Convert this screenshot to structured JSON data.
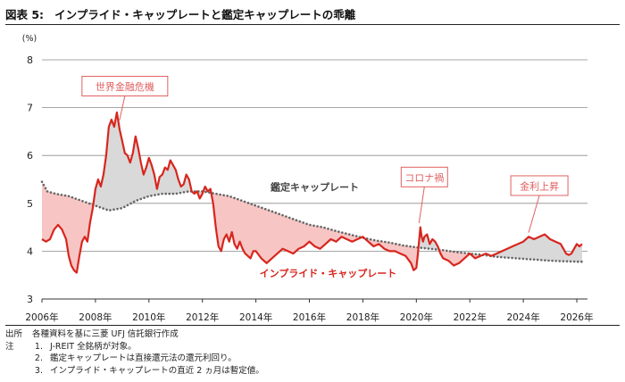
{
  "header": {
    "figure_number": "図表 5:",
    "title": "インプライド・キャップレートと鑑定キャップレートの乖離"
  },
  "colors": {
    "implied": "#d7261e",
    "appraisal": "#666666",
    "fill_below": "#f7c6c4",
    "fill_above": "#d9d9d9",
    "callout": "#e06060"
  },
  "chart_data": {
    "type": "line",
    "title": "",
    "xlabel": "",
    "ylabel": "(%)",
    "xlim": [
      2006.0,
      2026.4
    ],
    "ylim": [
      3,
      8
    ],
    "y_ticks": [
      "3",
      "4",
      "5",
      "6",
      "7",
      "8"
    ],
    "x_ticks": [
      "2006年",
      "2008年",
      "2010年",
      "2012年",
      "2014年",
      "2016年",
      "2018年",
      "2020年",
      "2022年",
      "2024年",
      "2026年"
    ],
    "grid": true,
    "series": [
      {
        "name": "インプライド・キャップレート",
        "style": "solid",
        "x": [
          2006.0,
          2006.15,
          2006.3,
          2006.45,
          2006.6,
          2006.75,
          2006.9,
          2007.0,
          2007.1,
          2007.2,
          2007.3,
          2007.4,
          2007.5,
          2007.6,
          2007.7,
          2007.8,
          2007.9,
          2008.0,
          2008.1,
          2008.2,
          2008.3,
          2008.4,
          2008.5,
          2008.6,
          2008.7,
          2008.8,
          2008.9,
          2009.0,
          2009.1,
          2009.2,
          2009.3,
          2009.4,
          2009.5,
          2009.6,
          2009.7,
          2009.8,
          2009.9,
          2010.0,
          2010.1,
          2010.2,
          2010.3,
          2010.4,
          2010.5,
          2010.6,
          2010.7,
          2010.8,
          2010.9,
          2011.0,
          2011.1,
          2011.2,
          2011.3,
          2011.4,
          2011.5,
          2011.6,
          2011.7,
          2011.8,
          2011.9,
          2012.0,
          2012.1,
          2012.2,
          2012.3,
          2012.4,
          2012.5,
          2012.6,
          2012.7,
          2012.8,
          2012.9,
          2013.0,
          2013.1,
          2013.2,
          2013.3,
          2013.4,
          2013.5,
          2013.6,
          2013.7,
          2013.8,
          2013.9,
          2014.0,
          2014.2,
          2014.4,
          2014.6,
          2014.8,
          2015.0,
          2015.2,
          2015.4,
          2015.6,
          2015.8,
          2016.0,
          2016.2,
          2016.4,
          2016.6,
          2016.8,
          2017.0,
          2017.2,
          2017.4,
          2017.6,
          2017.8,
          2018.0,
          2018.2,
          2018.4,
          2018.6,
          2018.8,
          2019.0,
          2019.2,
          2019.4,
          2019.6,
          2019.8,
          2019.9,
          2020.0,
          2020.05,
          2020.1,
          2020.15,
          2020.2,
          2020.25,
          2020.3,
          2020.4,
          2020.5,
          2020.6,
          2020.7,
          2020.8,
          2020.9,
          2021.0,
          2021.2,
          2021.4,
          2021.6,
          2021.8,
          2022.0,
          2022.2,
          2022.4,
          2022.6,
          2022.8,
          2023.0,
          2023.2,
          2023.4,
          2023.6,
          2023.8,
          2024.0,
          2024.2,
          2024.4,
          2024.6,
          2024.8,
          2025.0,
          2025.2,
          2025.4,
          2025.5,
          2025.6,
          2025.7,
          2025.8,
          2025.9,
          2026.0,
          2026.1,
          2026.2
        ],
        "values": [
          4.25,
          4.2,
          4.25,
          4.45,
          4.55,
          4.45,
          4.25,
          3.9,
          3.7,
          3.6,
          3.55,
          3.9,
          4.2,
          4.3,
          4.2,
          4.6,
          4.9,
          5.3,
          5.5,
          5.35,
          5.6,
          6.0,
          6.6,
          6.75,
          6.6,
          6.9,
          6.55,
          6.3,
          6.05,
          6.0,
          5.85,
          6.05,
          6.4,
          6.15,
          5.85,
          5.6,
          5.75,
          5.95,
          5.8,
          5.6,
          5.3,
          5.55,
          5.6,
          5.75,
          5.7,
          5.9,
          5.8,
          5.7,
          5.5,
          5.35,
          5.4,
          5.6,
          5.5,
          5.25,
          5.2,
          5.25,
          5.1,
          5.2,
          5.35,
          5.25,
          5.3,
          5.0,
          4.5,
          4.1,
          4.0,
          4.25,
          4.35,
          4.2,
          4.4,
          4.15,
          4.05,
          4.2,
          4.05,
          3.95,
          3.9,
          3.85,
          4.0,
          4.0,
          3.85,
          3.75,
          3.85,
          3.95,
          4.05,
          4.0,
          3.95,
          4.05,
          4.1,
          4.2,
          4.1,
          4.05,
          4.15,
          4.25,
          4.2,
          4.3,
          4.25,
          4.2,
          4.25,
          4.3,
          4.2,
          4.1,
          4.15,
          4.05,
          4.0,
          4.0,
          3.95,
          3.9,
          3.75,
          3.6,
          3.65,
          3.9,
          4.2,
          4.5,
          4.3,
          4.2,
          4.3,
          4.35,
          4.15,
          4.25,
          4.2,
          4.1,
          3.95,
          3.85,
          3.8,
          3.7,
          3.75,
          3.85,
          3.95,
          3.85,
          3.9,
          3.95,
          3.9,
          3.95,
          4.0,
          4.05,
          4.1,
          4.15,
          4.2,
          4.3,
          4.25,
          4.3,
          4.35,
          4.25,
          4.2,
          4.15,
          4.05,
          3.95,
          3.92,
          3.95,
          4.05,
          4.15,
          4.1,
          4.15
        ]
      },
      {
        "name": "鑑定キャップレート",
        "style": "dotted",
        "x": [
          2006.0,
          2006.2,
          2006.5,
          2007.0,
          2007.5,
          2008.0,
          2008.5,
          2009.0,
          2009.5,
          2010.0,
          2010.5,
          2011.0,
          2011.5,
          2012.0,
          2012.5,
          2013.0,
          2013.5,
          2014.0,
          2014.5,
          2015.0,
          2015.5,
          2016.0,
          2016.5,
          2017.0,
          2017.5,
          2018.0,
          2018.5,
          2019.0,
          2019.5,
          2020.0,
          2020.5,
          2021.0,
          2021.5,
          2022.0,
          2022.5,
          2023.0,
          2023.5,
          2024.0,
          2024.5,
          2025.0,
          2025.5,
          2026.0,
          2026.2
        ],
        "values": [
          5.45,
          5.25,
          5.2,
          5.15,
          5.05,
          4.95,
          4.85,
          4.9,
          5.05,
          5.15,
          5.2,
          5.2,
          5.25,
          5.25,
          5.2,
          5.15,
          5.05,
          4.95,
          4.85,
          4.75,
          4.65,
          4.55,
          4.5,
          4.42,
          4.35,
          4.28,
          4.22,
          4.18,
          4.12,
          4.08,
          4.05,
          4.02,
          3.98,
          3.95,
          3.92,
          3.88,
          3.86,
          3.84,
          3.82,
          3.8,
          3.79,
          3.78,
          3.78
        ]
      }
    ],
    "annotations": [
      {
        "label": "世界金融危機",
        "x": 2008.9,
        "y": 6.7
      },
      {
        "label": "コロナ禍",
        "x": 2020.1,
        "y": 4.55
      },
      {
        "label": "金利上昇",
        "x": 2024.2,
        "y": 4.35
      }
    ],
    "series_labels": [
      {
        "text": "鑑定キャップレート",
        "series": 1
      },
      {
        "text": "インプライド・キャップレート",
        "series": 0
      }
    ]
  },
  "notes": {
    "source_key": "出所",
    "source_text": "各種資料を基に三菱 UFJ 信託銀行作成",
    "note_key": "注",
    "items": [
      {
        "num": "1.",
        "text": "J-REIT 全銘柄が対象。"
      },
      {
        "num": "2.",
        "text": "鑑定キャップレートは直接還元法の還元利回り。"
      },
      {
        "num": "3.",
        "text": "インプライド・キャップレートの直近 2 ヵ月は暫定値。"
      }
    ]
  }
}
